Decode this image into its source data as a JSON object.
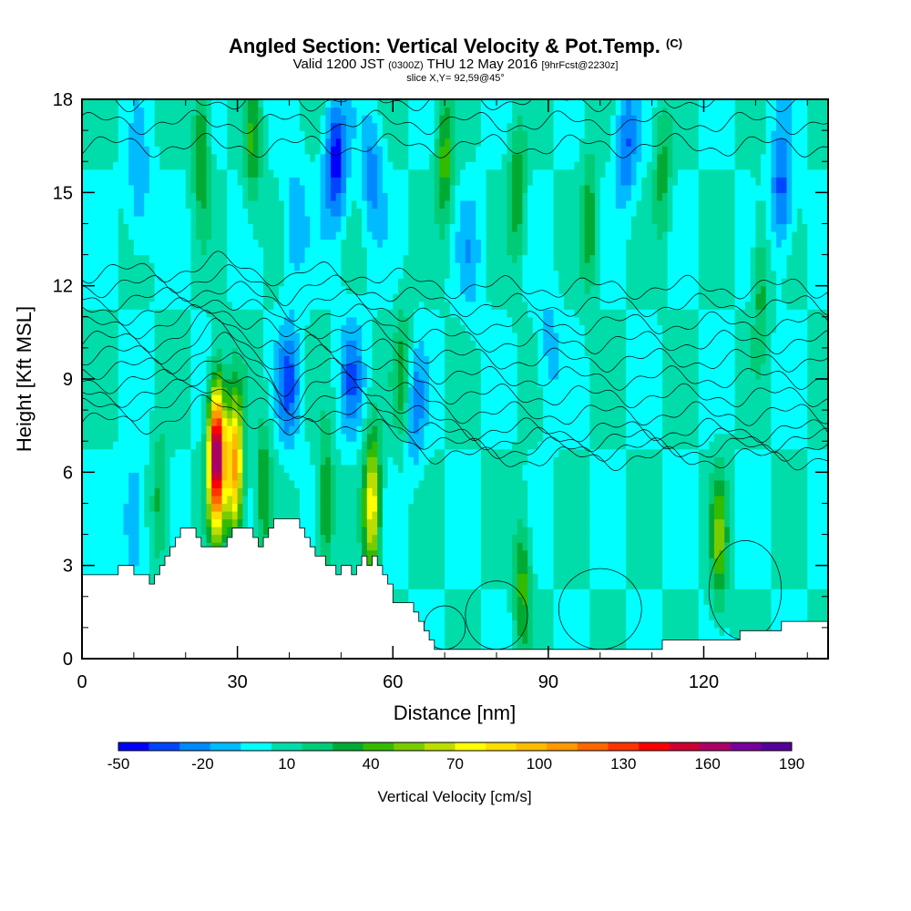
{
  "title": {
    "line1_main": "Angled Section: Vertical Velocity & Pot.Temp.",
    "line1_unit": "(C)",
    "line2_a": "Valid 1200 JST",
    "line2_b": "(0300Z)",
    "line2_c": "THU 12 May 2016",
    "line2_d": "[9hrFcst@2230z]",
    "line3": "slice X,Y= 92,59@45°"
  },
  "chart_data": {
    "type": "heatmap",
    "xlabel": "Distance [nm]",
    "ylabel": "Height [Kft MSL]",
    "xlim": [
      0,
      144
    ],
    "ylim": [
      0,
      18
    ],
    "x_ticks": [
      0,
      30,
      60,
      90,
      120
    ],
    "y_ticks": [
      0,
      3,
      6,
      9,
      12,
      15,
      18
    ],
    "colorbar": {
      "title": "Vertical Velocity [cm/s]",
      "min": -50,
      "max": 190,
      "step": 10,
      "tick_values": [
        -50,
        -20,
        10,
        40,
        70,
        100,
        130,
        160,
        190
      ],
      "colors": [
        "#0000ff",
        "#0044ff",
        "#0088ff",
        "#00bbff",
        "#00ffff",
        "#00ddaa",
        "#00cc77",
        "#00aa33",
        "#33bb00",
        "#77cc00",
        "#bbdd00",
        "#ffff00",
        "#ffdd00",
        "#ffbb00",
        "#ff9900",
        "#ff6600",
        "#ff3300",
        "#ff0000",
        "#cc0033",
        "#aa0066",
        "#770099",
        "#550099"
      ]
    },
    "background_value": 0,
    "terrain_top_kft": [
      [
        0,
        2.7
      ],
      [
        6,
        2.7
      ],
      [
        7,
        3.0
      ],
      [
        9,
        3.0
      ],
      [
        10,
        2.7
      ],
      [
        12,
        2.7
      ],
      [
        13,
        2.4
      ],
      [
        14,
        2.7
      ],
      [
        15,
        3.0
      ],
      [
        16,
        3.3
      ],
      [
        17,
        3.6
      ],
      [
        18,
        3.9
      ],
      [
        19,
        4.2
      ],
      [
        21,
        4.2
      ],
      [
        22,
        3.9
      ],
      [
        23,
        3.6
      ],
      [
        27,
        3.6
      ],
      [
        28,
        3.9
      ],
      [
        29,
        4.2
      ],
      [
        32,
        4.2
      ],
      [
        33,
        3.9
      ],
      [
        34,
        3.6
      ],
      [
        35,
        3.9
      ],
      [
        36,
        4.2
      ],
      [
        37,
        4.5
      ],
      [
        41,
        4.5
      ],
      [
        42,
        4.2
      ],
      [
        43,
        3.9
      ],
      [
        44,
        3.6
      ],
      [
        45,
        3.3
      ],
      [
        47,
        3.0
      ],
      [
        48,
        3.0
      ],
      [
        49,
        2.7
      ],
      [
        50,
        3.0
      ],
      [
        51,
        3.0
      ],
      [
        52,
        2.7
      ],
      [
        53,
        3.0
      ],
      [
        54,
        3.3
      ],
      [
        55,
        3.0
      ],
      [
        56,
        3.3
      ],
      [
        57,
        3.0
      ],
      [
        58,
        2.7
      ],
      [
        59,
        2.4
      ],
      [
        60,
        1.8
      ],
      [
        63,
        1.8
      ],
      [
        64,
        1.5
      ],
      [
        65,
        1.2
      ],
      [
        66,
        0.9
      ],
      [
        67,
        0.6
      ],
      [
        68,
        0.3
      ],
      [
        72,
        0.3
      ],
      [
        76,
        0.3
      ],
      [
        80,
        0.3
      ],
      [
        85,
        0.3
      ],
      [
        90,
        0.3
      ],
      [
        95,
        0.3
      ],
      [
        100,
        0.3
      ],
      [
        105,
        0.3
      ],
      [
        111,
        0.3
      ],
      [
        112,
        0.6
      ],
      [
        120,
        0.6
      ],
      [
        126,
        0.6
      ],
      [
        127,
        0.9
      ],
      [
        134,
        0.9
      ],
      [
        135,
        1.2
      ],
      [
        144,
        1.2
      ]
    ],
    "updrafts": [
      {
        "x": 26,
        "y": 6.5,
        "peak": 160
      },
      {
        "x": 29.5,
        "y": 6.2,
        "peak": 95
      },
      {
        "x": 56,
        "y": 5.0,
        "peak": 70
      },
      {
        "x": 123,
        "y": 3.8,
        "peak": 40
      },
      {
        "x": 23,
        "y": 16.5,
        "peak": 35
      },
      {
        "x": 33,
        "y": 16.5,
        "peak": 30
      },
      {
        "x": 70,
        "y": 16.0,
        "peak": 35
      },
      {
        "x": 84,
        "y": 15.0,
        "peak": 30
      },
      {
        "x": 98,
        "y": 14.0,
        "peak": 30
      },
      {
        "x": 112,
        "y": 15.5,
        "peak": 25
      },
      {
        "x": 131,
        "y": 12.0,
        "peak": 25
      },
      {
        "x": 62,
        "y": 9.0,
        "peak": 30
      },
      {
        "x": 47,
        "y": 5.0,
        "peak": 35
      },
      {
        "x": 85,
        "y": 2.5,
        "peak": 35
      },
      {
        "x": 15,
        "y": 5.0,
        "peak": 25
      },
      {
        "x": 35,
        "y": 5.5,
        "peak": 30
      }
    ],
    "downdrafts": [
      {
        "x": 49,
        "y": 16.0,
        "peak": -45
      },
      {
        "x": 40,
        "y": 8.8,
        "peak": -30
      },
      {
        "x": 56,
        "y": 15.5,
        "peak": -25
      },
      {
        "x": 11,
        "y": 15.0,
        "peak": -20
      },
      {
        "x": 135,
        "y": 15.0,
        "peak": -35
      },
      {
        "x": 105,
        "y": 16.5,
        "peak": -30
      },
      {
        "x": 41,
        "y": 14.0,
        "peak": -20
      },
      {
        "x": 75,
        "y": 13.0,
        "peak": -15
      },
      {
        "x": 64,
        "y": 8.0,
        "peak": -25
      },
      {
        "x": 52,
        "y": 9.0,
        "peak": -25
      },
      {
        "x": 10,
        "y": 4.5,
        "peak": -25
      },
      {
        "x": 90,
        "y": 10.0,
        "peak": -15
      }
    ],
    "isentropes_kft": {
      "spacing_kft": 0.55,
      "count": 24,
      "base_kft": 7.6
    }
  }
}
